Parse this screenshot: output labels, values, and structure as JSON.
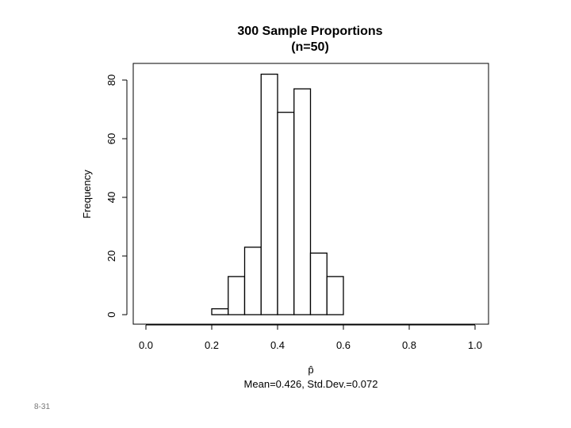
{
  "slide_number": "8-31",
  "chart_data": {
    "type": "bar",
    "title": "300 Sample Proportions",
    "subtitle": "(n=50)",
    "xlabel": "p̂",
    "ylabel": "Frequency",
    "annotation": "Mean=0.426, Std.Dev.=0.072",
    "bins": [
      [
        0.2,
        0.25
      ],
      [
        0.25,
        0.3
      ],
      [
        0.3,
        0.35
      ],
      [
        0.35,
        0.4
      ],
      [
        0.4,
        0.45
      ],
      [
        0.45,
        0.5
      ],
      [
        0.5,
        0.55
      ],
      [
        0.55,
        0.6
      ]
    ],
    "values": [
      2,
      13,
      23,
      82,
      69,
      77,
      21,
      13
    ],
    "xlim": [
      0.0,
      1.0
    ],
    "ylim": [
      0,
      80
    ],
    "xticks": [
      "0.0",
      "0.2",
      "0.4",
      "0.6",
      "0.8",
      "1.0"
    ],
    "yticks": [
      "0",
      "20",
      "40",
      "60",
      "80"
    ],
    "grid": false
  }
}
